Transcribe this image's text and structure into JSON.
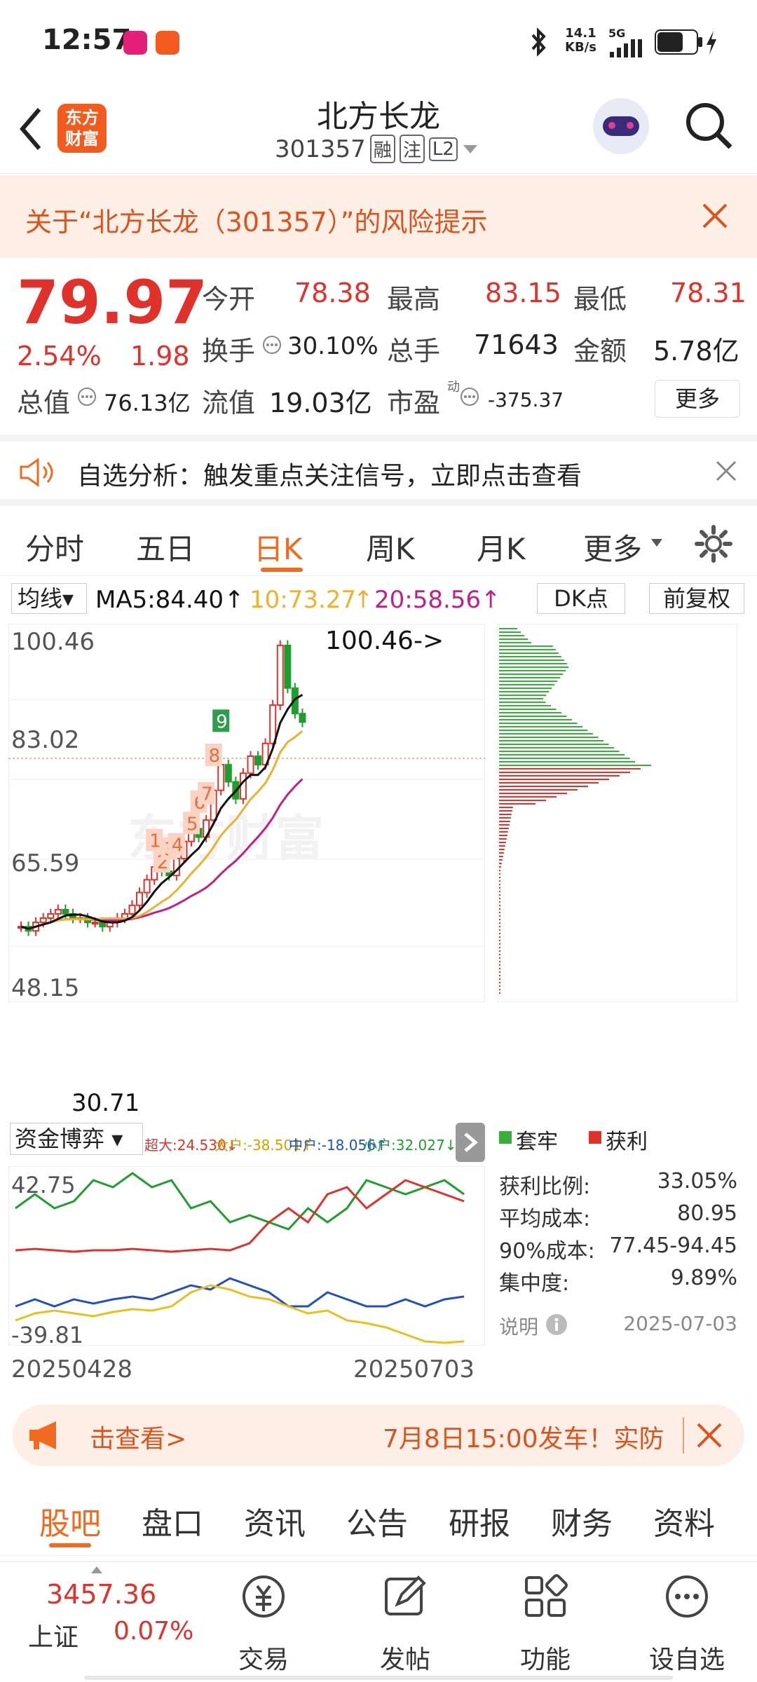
{
  "status_bar": {
    "time": "12:57",
    "net_speed_value": "14.1",
    "net_speed_unit": "KB/s",
    "network": "5G"
  },
  "header": {
    "back_icon": "chevron-left-icon",
    "brand_line1": "东方",
    "brand_line2": "财富",
    "title": "北方长龙",
    "code": "301357",
    "badge_margin": "融",
    "badge_short": "注",
    "badge_level": "L2"
  },
  "risk_banner": {
    "text": "关于“北方长龙（301357）”的风险提示"
  },
  "quote": {
    "price": "79.97",
    "change_pct": "2.54%",
    "change": "1.98",
    "open_label": "今开",
    "open": "78.38",
    "high_label": "最高",
    "high": "83.15",
    "low_label": "最低",
    "low": "78.31",
    "turnover_label": "换手",
    "turnover": "30.10%",
    "volume_label": "总手",
    "volume": "71643",
    "amount_label": "金额",
    "amount": "5.78亿",
    "total_value_label": "总值",
    "total_value": "76.13亿",
    "float_value_label": "流值",
    "float_value": "19.03亿",
    "pe_label": "市盈",
    "pe_super": "动",
    "pe": "-375.37",
    "more_button": "更多"
  },
  "notice": {
    "text": "自选分析：触发重点关注信号，立即点击查看"
  },
  "chart_tabs": [
    "分时",
    "五日",
    "日K",
    "周K",
    "月K",
    "更多"
  ],
  "chart_header": {
    "ma_select": "均线",
    "ma5": "MA5:84.40",
    "ma10": "10:73.27",
    "ma20": "20:58.56",
    "dk_button": "DK点",
    "adjust_button": "前复权"
  },
  "kline": {
    "y_labels": [
      "100.46",
      "83.02",
      "65.59",
      "48.15",
      "30.71"
    ],
    "max_annotation": "100.46->",
    "min_annotation": "30.71",
    "signals": [
      "1",
      "2",
      "3",
      "4",
      "5",
      "6",
      "7",
      "8",
      "9"
    ]
  },
  "chip_panel": {
    "legend_trapped": "套牢",
    "legend_profit": "获利",
    "rows": [
      {
        "label": "获利比例:",
        "value": "33.05%"
      },
      {
        "label": "平均成本:",
        "value": "80.95"
      },
      {
        "label": "90%成本:",
        "value": "77.45-94.45"
      },
      {
        "label": "集中度:",
        "value": "9.89%"
      }
    ],
    "explain": "说明",
    "date": "2025-07-03"
  },
  "fund_flow": {
    "select": "资金博弈",
    "legend": [
      "超大:24.530↓",
      "大户:-38.501↑",
      "中户:-18.056↑",
      "小户:32.027↓"
    ],
    "y_top": "42.75",
    "y_bottom": "-39.81",
    "date_start": "20250428",
    "date_end": "20250703"
  },
  "promo": {
    "left": "击查看>",
    "right": "7月8日15:00发车！实防"
  },
  "sub_tabs": [
    "股吧",
    "盘口",
    "资讯",
    "公告",
    "研报",
    "财务",
    "资料"
  ],
  "bottom_bar": {
    "index_value": "3457.36",
    "index_name": "上证",
    "index_change": "0.07%",
    "items": [
      "交易",
      "发帖",
      "功能",
      "设自选"
    ]
  },
  "colors": {
    "up": "#e0322b",
    "down": "#1f9d2e",
    "accent": "#f06a1f",
    "ma5": "#111111",
    "ma10": "#f0b030",
    "ma20": "#c0208a"
  }
}
